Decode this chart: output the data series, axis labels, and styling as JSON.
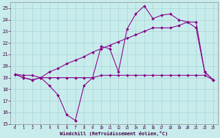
{
  "xlabel": "Windchill (Refroidissement éolien,°C)",
  "xlim": [
    -0.5,
    23.5
  ],
  "ylim": [
    15,
    25.5
  ],
  "yticks": [
    15,
    16,
    17,
    18,
    19,
    20,
    21,
    22,
    23,
    24,
    25
  ],
  "xticks": [
    0,
    1,
    2,
    3,
    4,
    5,
    6,
    7,
    8,
    9,
    10,
    11,
    12,
    13,
    14,
    15,
    16,
    17,
    18,
    19,
    20,
    21,
    22,
    23
  ],
  "bg_color": "#c8ecec",
  "grid_color": "#a8d4d4",
  "line_color": "#880088",
  "line1_x": [
    0,
    1,
    2,
    3,
    4,
    5,
    6,
    7,
    8,
    9,
    10,
    11,
    12,
    13,
    14,
    15,
    16,
    17,
    18,
    19,
    20,
    21,
    22,
    23
  ],
  "line1_y": [
    19.3,
    19.0,
    18.8,
    19.0,
    18.3,
    17.5,
    15.8,
    15.3,
    18.3,
    19.0,
    21.7,
    21.5,
    19.5,
    23.2,
    24.5,
    25.2,
    24.1,
    24.4,
    24.5,
    24.0,
    23.8,
    23.3,
    19.5,
    18.8
  ],
  "line2_x": [
    0,
    1,
    2,
    3,
    4,
    5,
    6,
    7,
    8,
    9,
    10,
    11,
    12,
    13,
    14,
    15,
    16,
    17,
    18,
    19,
    20,
    21,
    22,
    23
  ],
  "line2_y": [
    19.3,
    19.0,
    18.8,
    19.0,
    19.0,
    19.0,
    19.0,
    19.0,
    19.0,
    19.0,
    19.2,
    19.2,
    19.2,
    19.2,
    19.2,
    19.2,
    19.2,
    19.2,
    19.2,
    19.2,
    19.2,
    19.2,
    19.2,
    18.8
  ],
  "line3_x": [
    0,
    1,
    2,
    3,
    4,
    5,
    6,
    7,
    8,
    9,
    10,
    11,
    12,
    13,
    14,
    15,
    16,
    17,
    18,
    19,
    20,
    21,
    22,
    23
  ],
  "line3_y": [
    19.3,
    19.2,
    19.2,
    19.0,
    19.5,
    19.8,
    20.2,
    20.5,
    20.8,
    21.2,
    21.5,
    21.8,
    22.1,
    22.4,
    22.7,
    23.0,
    23.3,
    23.3,
    23.3,
    23.5,
    23.8,
    23.8,
    19.5,
    18.8
  ]
}
